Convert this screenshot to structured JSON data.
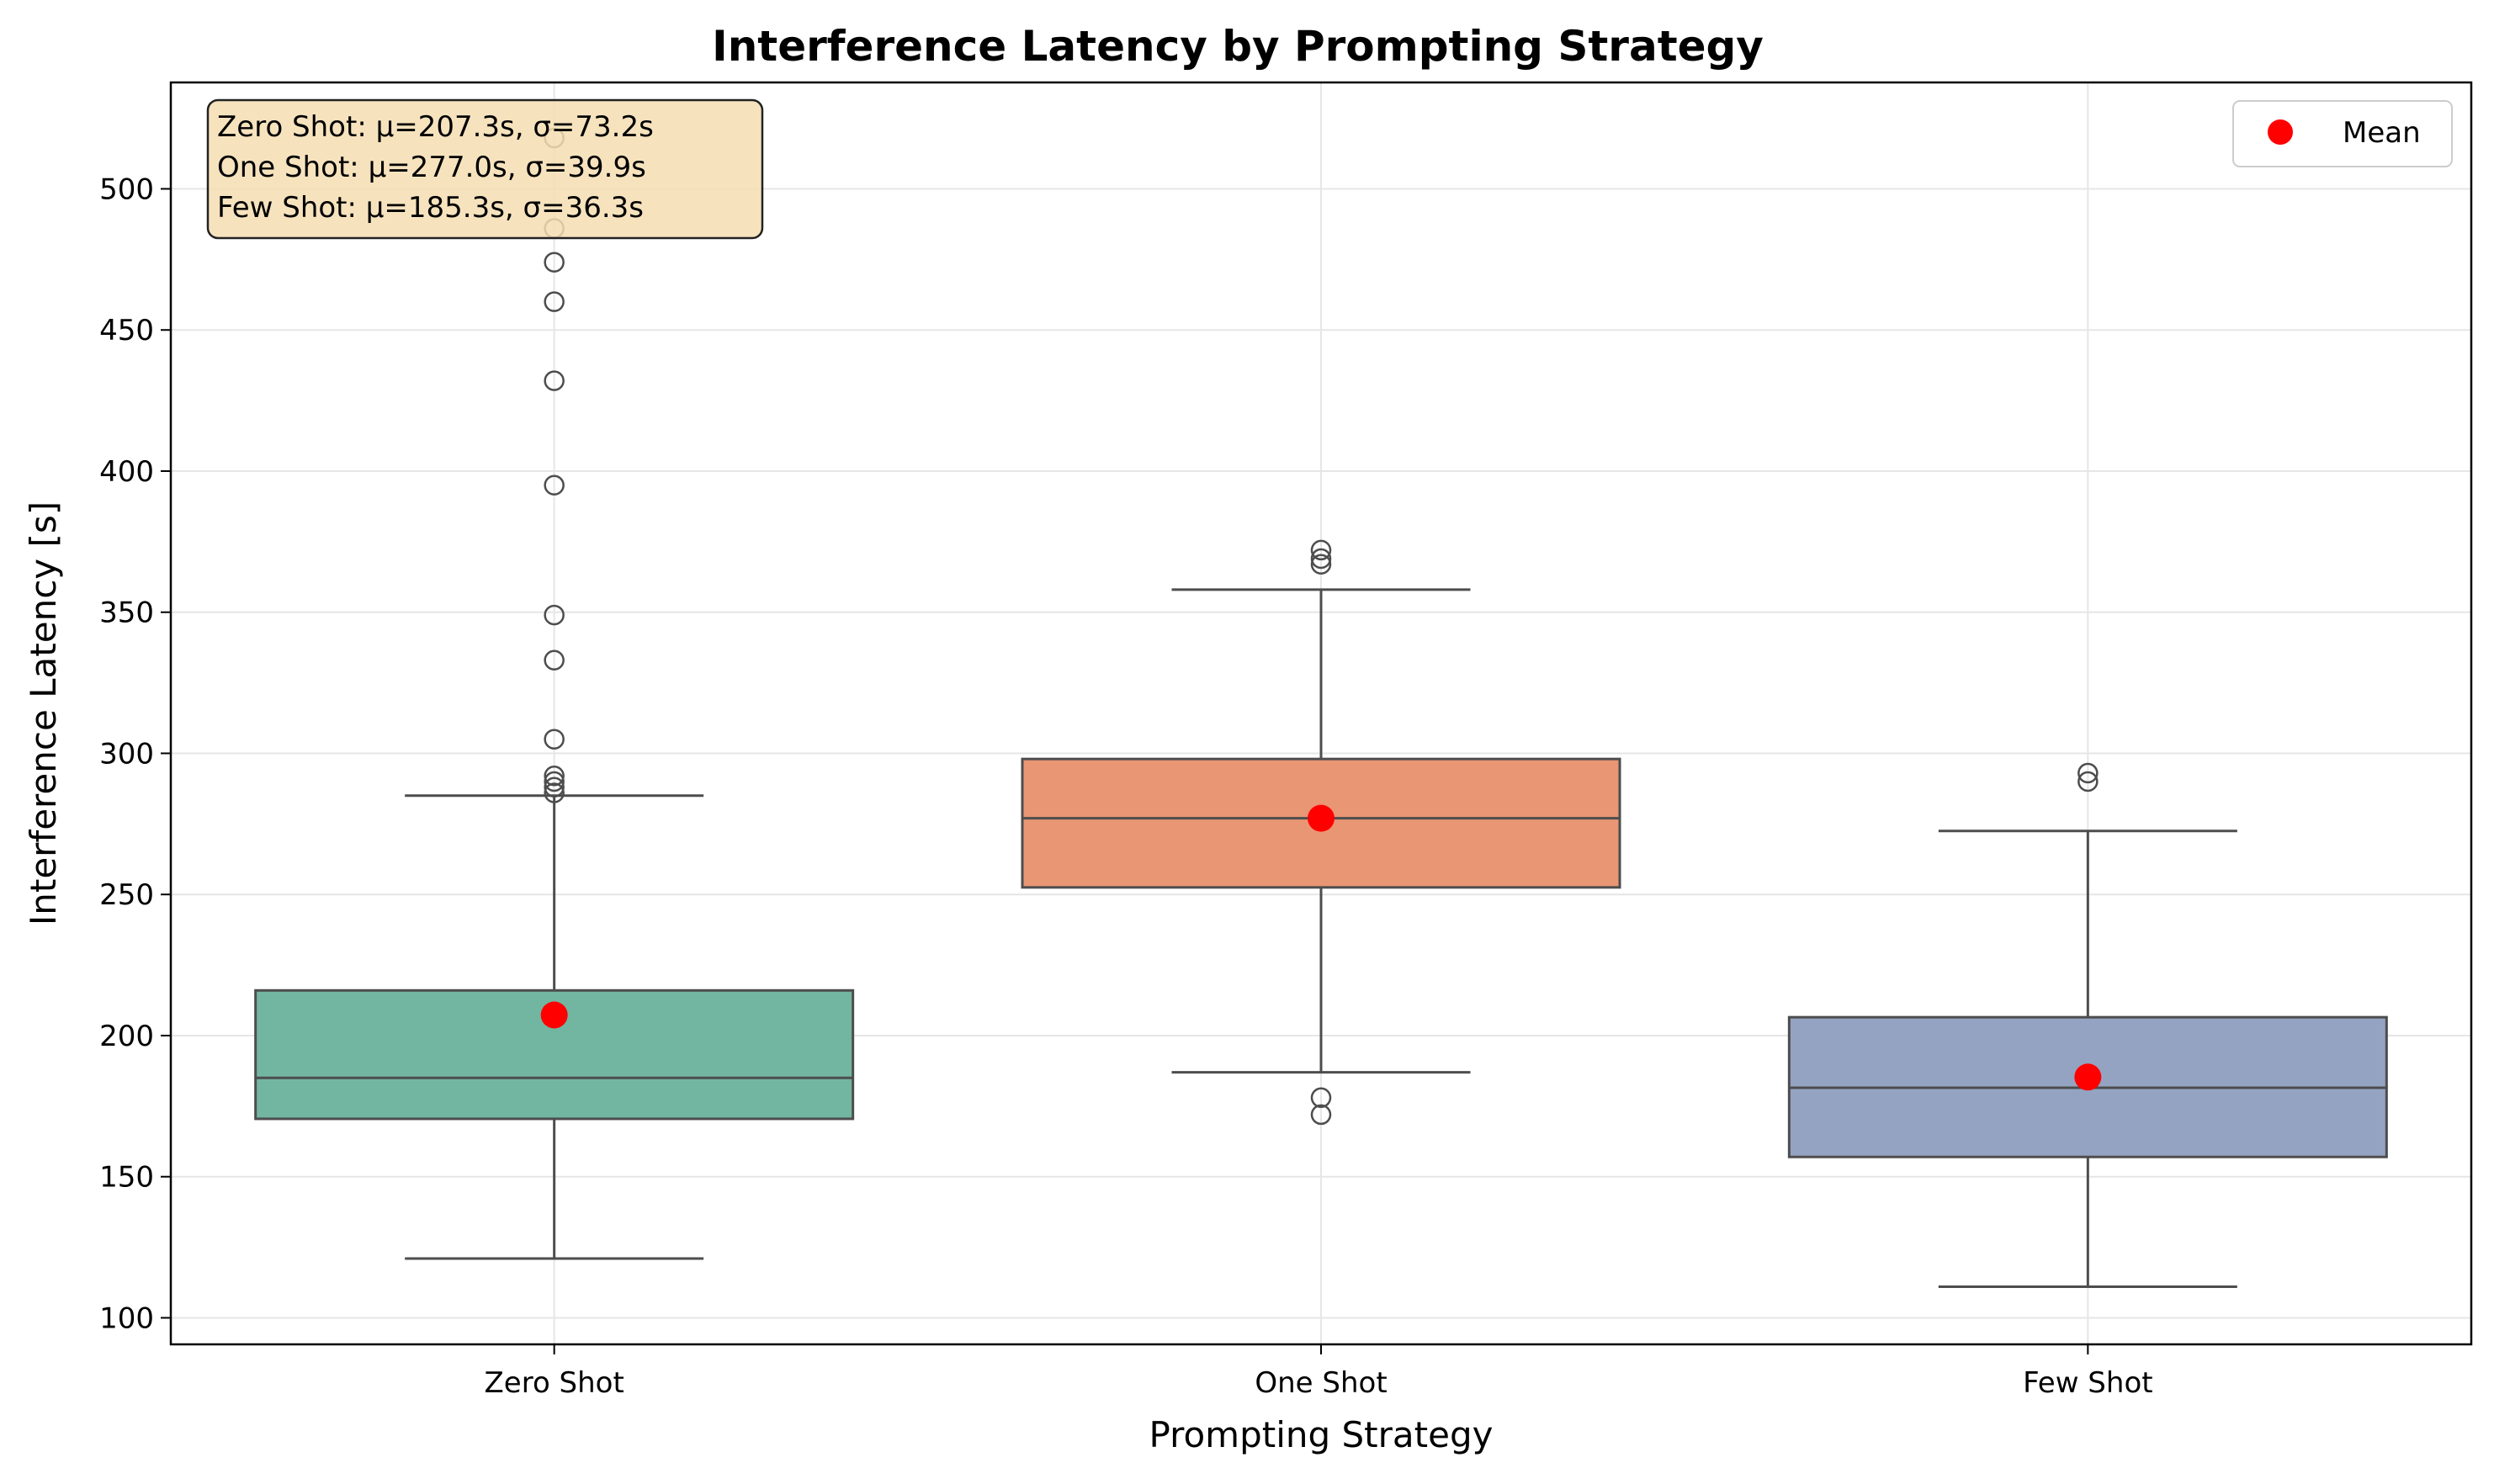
{
  "chart_data": {
    "type": "box",
    "title": "Interference Latency by Prompting Strategy",
    "xlabel": "Prompting Strategy",
    "ylabel": "Interference Latency [s]",
    "ylim": [
      90.6,
      537.7
    ],
    "yticks": [
      100,
      150,
      200,
      250,
      300,
      350,
      400,
      450,
      500
    ],
    "grid": true,
    "legend": {
      "label": "Mean",
      "placement": "top-right",
      "marker_color": "#ff0000"
    },
    "stats_box": {
      "lines": [
        "Zero Shot: μ=207.3s, σ=73.2s",
        "One Shot: μ=277.0s, σ=39.9s",
        "Few Shot: μ=185.3s, σ=36.3s"
      ],
      "placement": "top-left",
      "background": "#f5deb3"
    },
    "categories": [
      "Zero Shot",
      "One Shot",
      "Few Shot"
    ],
    "boxes": [
      {
        "name": "Zero Shot",
        "color": "#72b6a1",
        "whisker_low": 121,
        "q1": 170.5,
        "median": 185,
        "q3": 216,
        "whisker_high": 285,
        "mean": 207.3,
        "outliers": [
          286,
          288,
          290,
          292,
          305,
          333,
          349,
          395,
          432,
          460,
          474,
          486,
          518
        ]
      },
      {
        "name": "One Shot",
        "color": "#e99675",
        "whisker_low": 187,
        "q1": 252.5,
        "median": 277,
        "q3": 298,
        "whisker_high": 358,
        "mean": 277.0,
        "outliers": [
          172,
          178,
          367,
          369,
          372
        ]
      },
      {
        "name": "Few Shot",
        "color": "#95a3c3",
        "whisker_low": 111,
        "q1": 157,
        "median": 181.5,
        "q3": 206.5,
        "whisker_high": 272.5,
        "mean": 185.3,
        "outliers": [
          290,
          293
        ]
      }
    ]
  }
}
